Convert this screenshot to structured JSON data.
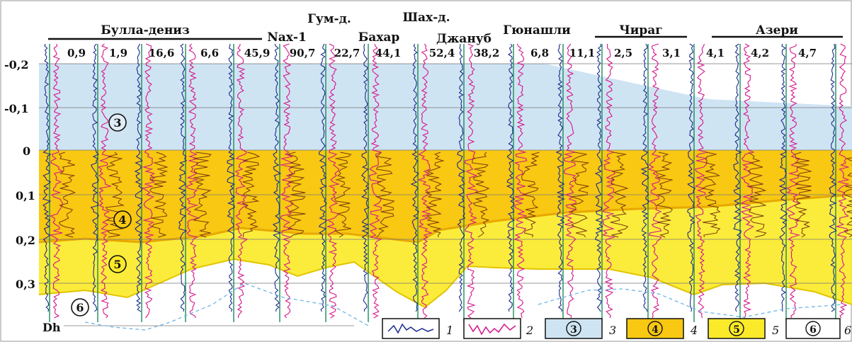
{
  "fields": [
    {
      "name": "Булла-дениз"
    },
    {
      "name": "Nах-1"
    },
    {
      "name": "Гум-д."
    },
    {
      "name": "Бахар"
    },
    {
      "name": "Шах-д."
    },
    {
      "name": "Джануб"
    },
    {
      "name": "Гюнашли"
    },
    {
      "name": "Чираг"
    },
    {
      "name": "Азери"
    }
  ],
  "wells": [
    "0,9",
    "1,9",
    "16,6",
    "6,6",
    "45,9",
    "90,7",
    "22,7",
    "44,1",
    "52,4",
    "38,2",
    "6,8",
    "11,1",
    "2,5",
    "3,1",
    "4,1",
    "4,2",
    "4,7"
  ],
  "depth_axis": {
    "ticks": [
      "-0,2",
      "-0,1",
      "0",
      "0,1",
      "0,2",
      "0,3"
    ],
    "bottom_label": "Dh"
  },
  "zone_labels": [
    "3",
    "4",
    "5",
    "6"
  ],
  "legend": [
    {
      "key": "1",
      "type": "curve-blue"
    },
    {
      "key": "2",
      "type": "curve-magenta"
    },
    {
      "key": "3",
      "type": "zone",
      "label": "3",
      "fill": "#cfe4f3"
    },
    {
      "key": "4",
      "type": "zone",
      "label": "4",
      "fill": "#f8c812"
    },
    {
      "key": "5",
      "type": "zone",
      "label": "5",
      "fill": "#fbea2a"
    },
    {
      "key": "6",
      "type": "zone",
      "label": "6",
      "fill": "#ffffff"
    }
  ],
  "colors": {
    "zone3": "#cfe4f3",
    "zone4": "#f8c812",
    "zone5": "#fbea2a",
    "curve_blue": "#1a2a8e",
    "curve_magenta": "#d6148a",
    "curve_brown": "#7a3a10",
    "curve_green": "#1c8a5a"
  }
}
